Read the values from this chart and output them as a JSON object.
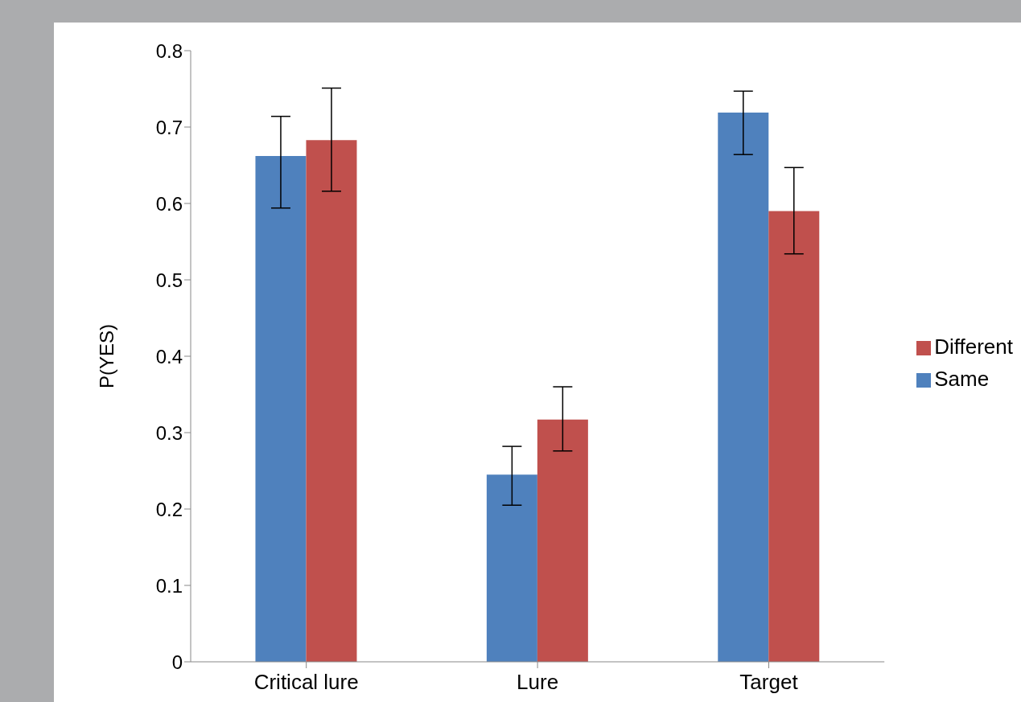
{
  "chart_data": {
    "type": "bar",
    "ylabel": "P(YES)",
    "categories": [
      "Critical lure",
      "Lure",
      "Target"
    ],
    "series": [
      {
        "name": "Same",
        "color": "#4f81bd",
        "values": [
          0.662,
          0.245,
          0.719
        ],
        "errors": [
          [
            0.594,
            0.714
          ],
          [
            0.205,
            0.282
          ],
          [
            0.664,
            0.747
          ]
        ]
      },
      {
        "name": "Different",
        "color": "#c0504d",
        "values": [
          0.683,
          0.317,
          0.59
        ],
        "errors": [
          [
            0.616,
            0.751
          ],
          [
            0.276,
            0.36
          ],
          [
            0.534,
            0.647
          ]
        ]
      }
    ],
    "ylim": [
      0,
      0.8
    ],
    "yticks": [
      0,
      0.1,
      0.2,
      0.3,
      0.4,
      0.5,
      0.6,
      0.7,
      0.8
    ],
    "grid": false,
    "legend": "right"
  }
}
